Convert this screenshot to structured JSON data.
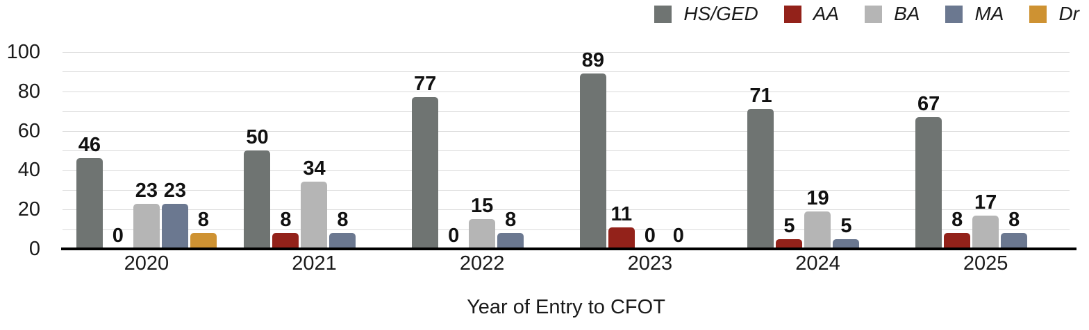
{
  "chart_data": {
    "type": "bar",
    "title": "",
    "xlabel": "Year of Entry to CFOT",
    "ylabel": "",
    "categories": [
      "2020",
      "2021",
      "2022",
      "2023",
      "2024",
      "2025"
    ],
    "series": [
      {
        "name": "HS/GED",
        "color": "#6F7472",
        "values": [
          46,
          50,
          77,
          89,
          71,
          67
        ]
      },
      {
        "name": "AA",
        "color": "#93221A",
        "values": [
          0,
          8,
          0,
          11,
          5,
          8
        ]
      },
      {
        "name": "BA",
        "color": "#B5B5B5",
        "values": [
          23,
          34,
          15,
          0,
          19,
          17
        ]
      },
      {
        "name": "MA",
        "color": "#6B7890",
        "values": [
          23,
          8,
          8,
          0,
          5,
          8
        ]
      },
      {
        "name": "Dr",
        "color": "#CE9232",
        "values": [
          8,
          null,
          null,
          null,
          null,
          null
        ]
      }
    ],
    "ylim": [
      0,
      100
    ],
    "yticks": [
      0,
      20,
      40,
      60,
      80,
      100
    ],
    "gridline_step": 10,
    "grid": "on",
    "legend_position": "top-right",
    "data_labels": "on",
    "zero_values_labeled_without_bar": true,
    "missing_values_blank": true
  },
  "colors": {
    "grid": "#D9D9D9",
    "axis": "#000000",
    "text": "#1A1A1A",
    "background": "#FFFFFF"
  }
}
